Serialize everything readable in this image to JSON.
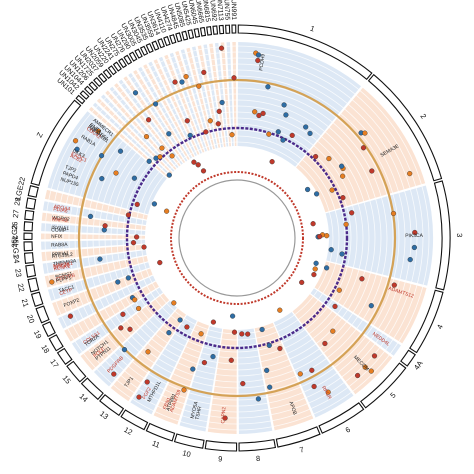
{
  "chart_data": {
    "type": "circos",
    "title": "",
    "chromosomes": [
      {
        "name": "1",
        "length": 230
      },
      {
        "name": "2",
        "length": 200
      },
      {
        "name": "3",
        "length": 175
      },
      {
        "name": "4",
        "length": 105
      },
      {
        "name": "4A",
        "length": 22
      },
      {
        "name": "5",
        "length": 90
      },
      {
        "name": "6",
        "length": 76
      },
      {
        "name": "7",
        "length": 70
      },
      {
        "name": "8",
        "length": 58
      },
      {
        "name": "9",
        "length": 50
      },
      {
        "name": "10",
        "length": 46
      },
      {
        "name": "11",
        "length": 44
      },
      {
        "name": "12",
        "length": 42
      },
      {
        "name": "13",
        "length": 38
      },
      {
        "name": "14",
        "length": 36
      },
      {
        "name": "15",
        "length": 32
      },
      {
        "name": "17",
        "length": 22
      },
      {
        "name": "18",
        "length": 22
      },
      {
        "name": "19",
        "length": 20
      },
      {
        "name": "20",
        "length": 24
      },
      {
        "name": "21",
        "length": 20
      },
      {
        "name": "22",
        "length": 20
      },
      {
        "name": "23",
        "length": 18
      },
      {
        "name": "24",
        "length": 16
      },
      {
        "name": "25LG1",
        "length": 14
      },
      {
        "name": "25LG2",
        "length": 10
      },
      {
        "name": "26",
        "length": 14
      },
      {
        "name": "27",
        "length": 14
      },
      {
        "name": "28",
        "length": 16
      },
      {
        "name": "LGE22",
        "length": 16
      },
      {
        "name": "Z",
        "length": 150
      },
      {
        "name": "UN101",
        "length": 6
      },
      {
        "name": "UN1042",
        "length": 6
      },
      {
        "name": "UN1044",
        "length": 6
      },
      {
        "name": "UN1206",
        "length": 6
      },
      {
        "name": "UN1725",
        "length": 6
      },
      {
        "name": "UN2037",
        "length": 6
      },
      {
        "name": "UN2059",
        "length": 6
      },
      {
        "name": "UN220",
        "length": 6
      },
      {
        "name": "UN2241",
        "length": 6
      },
      {
        "name": "UN275",
        "length": 6
      },
      {
        "name": "UN276",
        "length": 6
      },
      {
        "name": "UN290",
        "length": 6
      },
      {
        "name": "UN3005",
        "length": 6
      },
      {
        "name": "UN3045",
        "length": 6
      },
      {
        "name": "UN3535",
        "length": 6
      },
      {
        "name": "UN3559",
        "length": 6
      },
      {
        "name": "UN3614",
        "length": 6
      },
      {
        "name": "UN4110",
        "length": 6
      },
      {
        "name": "UN4274",
        "length": 6
      },
      {
        "name": "UN4845",
        "length": 6
      },
      {
        "name": "UN5085",
        "length": 6
      },
      {
        "name": "UN5425",
        "length": 6
      },
      {
        "name": "UN6045",
        "length": 6
      },
      {
        "name": "UN6665",
        "length": 6
      },
      {
        "name": "UN6815",
        "length": 6
      },
      {
        "name": "UN692",
        "length": 6
      },
      {
        "name": "UN7113",
        "length": 6
      },
      {
        "name": "UN755",
        "length": 6
      },
      {
        "name": "UN991",
        "length": 6
      }
    ],
    "gene_labels": [
      {
        "name": "PCDH9",
        "chr": "1",
        "pos": 0.2,
        "color": "#222222"
      },
      {
        "name": "AMMECR1",
        "chr": "Z",
        "pos": 0.97,
        "color": "#222222"
      },
      {
        "name": "RNF4",
        "chr": "Z",
        "pos": 0.9,
        "color": "#222222"
      },
      {
        "name": "RAPGEF1",
        "chr": "Z",
        "pos": 0.88,
        "color": "#222222"
      },
      {
        "name": "PAFAH1B1",
        "chr": "Z",
        "pos": 0.86,
        "color": "#222222"
      },
      {
        "name": "CDC42",
        "chr": "Z",
        "pos": 0.84,
        "color": "#c0392b"
      },
      {
        "name": "RAB1A",
        "chr": "Z",
        "pos": 0.72,
        "color": "#222222"
      },
      {
        "name": "DKK3",
        "chr": "Z",
        "pos": 0.52,
        "color": "#222222"
      },
      {
        "name": "EXOC1",
        "chr": "Z",
        "pos": 0.48,
        "color": "#c0392b"
      },
      {
        "name": "ACE2",
        "chr": "Z",
        "pos": 0.45,
        "color": "#c0392b"
      },
      {
        "name": "TJP2",
        "chr": "Z",
        "pos": 0.3,
        "color": "#222222"
      },
      {
        "name": "PAPD4",
        "chr": "Z",
        "pos": 0.22,
        "color": "#222222"
      },
      {
        "name": "NUP155",
        "chr": "Z",
        "pos": 0.14,
        "color": "#222222"
      },
      {
        "name": "APOA4",
        "chr": "28",
        "pos": 0.6,
        "color": "#c0392b"
      },
      {
        "name": "PDIA6",
        "chr": "28",
        "pos": 0.3,
        "color": "#c0392b"
      },
      {
        "name": "WDR92",
        "chr": "27",
        "pos": 0.5,
        "color": "#222222"
      },
      {
        "name": "RNF43",
        "chr": "27",
        "pos": 0.3,
        "color": "#c0392b"
      },
      {
        "name": "ISYNA1",
        "chr": "26",
        "pos": 0.5,
        "color": "#222222"
      },
      {
        "name": "COMP",
        "chr": "26",
        "pos": 0.2,
        "color": "#222222"
      },
      {
        "name": "NFIX",
        "chr": "25LG2",
        "pos": 0.5,
        "color": "#222222"
      },
      {
        "name": "RAB8A",
        "chr": "25LG1",
        "pos": 0.5,
        "color": "#222222"
      },
      {
        "name": "PPFIA1",
        "chr": "24",
        "pos": 0.6,
        "color": "#222222"
      },
      {
        "name": "ATG16L2",
        "chr": "24",
        "pos": 0.4,
        "color": "#222222"
      },
      {
        "name": "TMEM63A",
        "chr": "23",
        "pos": 0.8,
        "color": "#222222"
      },
      {
        "name": "MAP3K1",
        "chr": "23",
        "pos": 0.6,
        "color": "#c0392b"
      },
      {
        "name": "SCN4B",
        "chr": "23",
        "pos": 0.45,
        "color": "#c0392b"
      },
      {
        "name": "KCNK1",
        "chr": "23",
        "pos": 0.3,
        "color": "#c0392b"
      },
      {
        "name": "SGMS1",
        "chr": "22",
        "pos": 0.7,
        "color": "#222222"
      },
      {
        "name": "CSF2RB",
        "chr": "22",
        "pos": 0.5,
        "color": "#c0392b"
      },
      {
        "name": "PLPP1",
        "chr": "22",
        "pos": 0.35,
        "color": "#222222"
      },
      {
        "name": "TACC1",
        "chr": "21",
        "pos": 0.6,
        "color": "#222222"
      },
      {
        "name": "CETP",
        "chr": "21",
        "pos": 0.35,
        "color": "#c0392b"
      },
      {
        "name": "FOXP2",
        "chr": "20",
        "pos": 0.5,
        "color": "#222222"
      },
      {
        "name": "COL5A1",
        "chr": "17",
        "pos": 0.5,
        "color": "#c0392b"
      },
      {
        "name": "TOR2A",
        "chr": "17",
        "pos": 0.3,
        "color": "#222222"
      },
      {
        "name": "NOTCH1",
        "chr": "15",
        "pos": 0.7,
        "color": "#222222"
      },
      {
        "name": "POLE",
        "chr": "15",
        "pos": 0.5,
        "color": "#c0392b"
      },
      {
        "name": "PTPN11",
        "chr": "15",
        "pos": 0.3,
        "color": "#222222"
      },
      {
        "name": "PDGFRB",
        "chr": "14",
        "pos": 0.5,
        "color": "#c0392b"
      },
      {
        "name": "TJP1",
        "chr": "13",
        "pos": 0.5,
        "color": "#222222"
      },
      {
        "name": "FGF2",
        "chr": "12",
        "pos": 0.6,
        "color": "#c0392b"
      },
      {
        "name": "MTHFD1L",
        "chr": "12",
        "pos": 0.35,
        "color": "#222222"
      },
      {
        "name": "FBN1",
        "chr": "11",
        "pos": 0.7,
        "color": "#c0392b"
      },
      {
        "name": "ATP8B1",
        "chr": "11",
        "pos": 0.55,
        "color": "#222222"
      },
      {
        "name": "ADAMTS9",
        "chr": "11",
        "pos": 0.4,
        "color": "#c0392b"
      },
      {
        "name": "MYO5A",
        "chr": "10",
        "pos": 0.6,
        "color": "#222222"
      },
      {
        "name": "TSHR",
        "chr": "10",
        "pos": 0.4,
        "color": "#222222"
      },
      {
        "name": "CAPN2",
        "chr": "9",
        "pos": 0.5,
        "color": "#c0392b"
      },
      {
        "name": "APOB",
        "chr": "7",
        "pos": 0.4,
        "color": "#222222"
      },
      {
        "name": "RPGR",
        "chr": "6",
        "pos": 0.5,
        "color": "#c0392b"
      },
      {
        "name": "MECOM",
        "chr": "5",
        "pos": 0.5,
        "color": "#222222"
      },
      {
        "name": "NEDD4L",
        "chr": "4A",
        "pos": 0.5,
        "color": "#c0392b"
      },
      {
        "name": "ADAMTS12",
        "chr": "4",
        "pos": 0.2,
        "color": "#c0392b"
      },
      {
        "name": "PIK3CA",
        "chr": "3",
        "pos": 0.5,
        "color": "#222222"
      },
      {
        "name": "SEMA3E",
        "chr": "2",
        "pos": 0.6,
        "color": "#222222"
      }
    ],
    "tracks": [
      {
        "name": "",
        "color": "#2e6da4"
      },
      {
        "name": "",
        "color": "#e67e22"
      },
      {
        "name": "",
        "color": "#c0392b"
      },
      {
        "name": "",
        "color": "#4b2a8a"
      }
    ]
  }
}
